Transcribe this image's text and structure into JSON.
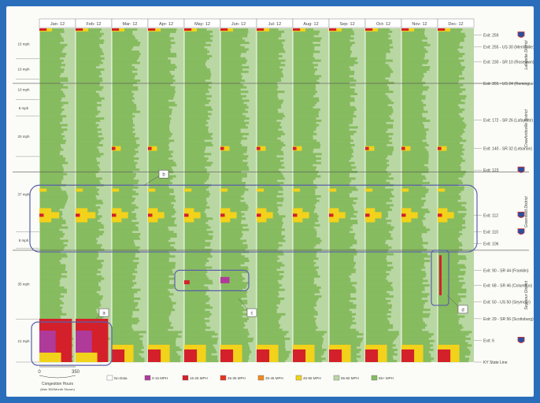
{
  "chart_data": {
    "type": "heatmap",
    "title": "",
    "months": [
      "Jan- 12",
      "Feb- 12",
      "Mar- 12",
      "Apr- 12",
      "May- 12",
      "Jun- 12",
      "Jul- 12",
      "Aug- 12",
      "Sep- 12",
      "Oct- 12",
      "Nov- 12",
      "Dec- 12"
    ],
    "x_axis": {
      "ticks": [
        "0",
        "350"
      ],
      "label": "Congestion Hours",
      "sublabel": "(Max 350/Month Shown)",
      "xlim": [
        0,
        350
      ]
    },
    "segments": [
      {
        "label": "Lafayette District",
        "length_label": "15 mph",
        "length_miles": 15
      },
      {
        "label": "Lafayette District",
        "length_label": "10 mph",
        "length_miles": 10
      },
      {
        "label": "Lafayette District",
        "length_label": "10 mph",
        "length_miles": 10
      },
      {
        "label": "Crawfordsville District",
        "length_label": "8 mph",
        "length_miles": 8
      },
      {
        "label": "Crawfordsville District",
        "length_label": "20 mph",
        "length_miles": 20
      },
      {
        "label": "Greenfield District",
        "length_label": "37 mph",
        "length_miles": 37
      },
      {
        "label": "Greenfield District",
        "length_label": "8 mph",
        "length_miles": 8
      },
      {
        "label": "Seymour District",
        "length_label": "35 mph",
        "length_miles": 35
      },
      {
        "label": "Seymour District",
        "length_label": "21 mph",
        "length_miles": 21
      }
    ],
    "exits": [
      {
        "label": "Exit: 259",
        "shield": true,
        "y_frac": 0.02
      },
      {
        "label": "Exit: 255 - US 30 (Merrillville)",
        "y_frac": 0.055
      },
      {
        "label": "Exit: 230 - SR 10 (Roselawn)",
        "y_frac": 0.1
      },
      {
        "label": "Exit: 201 - US 24 (Remington)",
        "y_frac": 0.165
      },
      {
        "label": "Exit: 172 - SR 26 (Lafayette)",
        "y_frac": 0.275
      },
      {
        "label": "Exit: 140 - SR 32 (Lebanon)",
        "y_frac": 0.36
      },
      {
        "label": "Exit: 123",
        "shield": true,
        "y_frac": 0.425
      },
      {
        "label": "Exit: 112",
        "shield": true,
        "y_frac": 0.56
      },
      {
        "label": "Exit: 110",
        "shield": true,
        "y_frac": 0.61
      },
      {
        "label": "Exit: 106",
        "y_frac": 0.645
      },
      {
        "label": "Exit: 90 - SR 44 (Franklin)",
        "y_frac": 0.725
      },
      {
        "label": "Exit: 68 - SR 46 (Columbus)",
        "y_frac": 0.77
      },
      {
        "label": "Exit: 50 - US 50 (Seymour)",
        "y_frac": 0.82
      },
      {
        "label": "Exit: 29 - SR 56 (Scottsburg)",
        "y_frac": 0.87
      },
      {
        "label": "Exit: 6",
        "shield": true,
        "y_frac": 0.935
      },
      {
        "label": "KY State Line",
        "y_frac": 1.0
      }
    ],
    "district_labels": [
      "Lafayette District",
      "Crawfordsville District",
      "Greenfield District",
      "Seymour District"
    ],
    "legend": [
      {
        "label": "No Data",
        "color": "#ffffff"
      },
      {
        "label": "0-15 MPH",
        "color": "#b03a9a"
      },
      {
        "label": "15-25 MPH",
        "color": "#d4202a"
      },
      {
        "label": "25-35 MPH",
        "color": "#e8321e"
      },
      {
        "label": "35-45 MPH",
        "color": "#f08a1c"
      },
      {
        "label": "45-55 MPH",
        "color": "#f2d21a"
      },
      {
        "label": "55-65 MPH",
        "color": "#b9d7a3"
      },
      {
        "label": "65+ MPH",
        "color": "#86bb5f"
      }
    ],
    "annotations": [
      {
        "label": "a",
        "note": "bottom Jan–Feb congestion"
      },
      {
        "label": "b",
        "note": "Greenfield district congestion across all months"
      },
      {
        "label": "c",
        "note": "May–Jun incident"
      },
      {
        "label": "d",
        "note": "Dec incident"
      }
    ]
  }
}
